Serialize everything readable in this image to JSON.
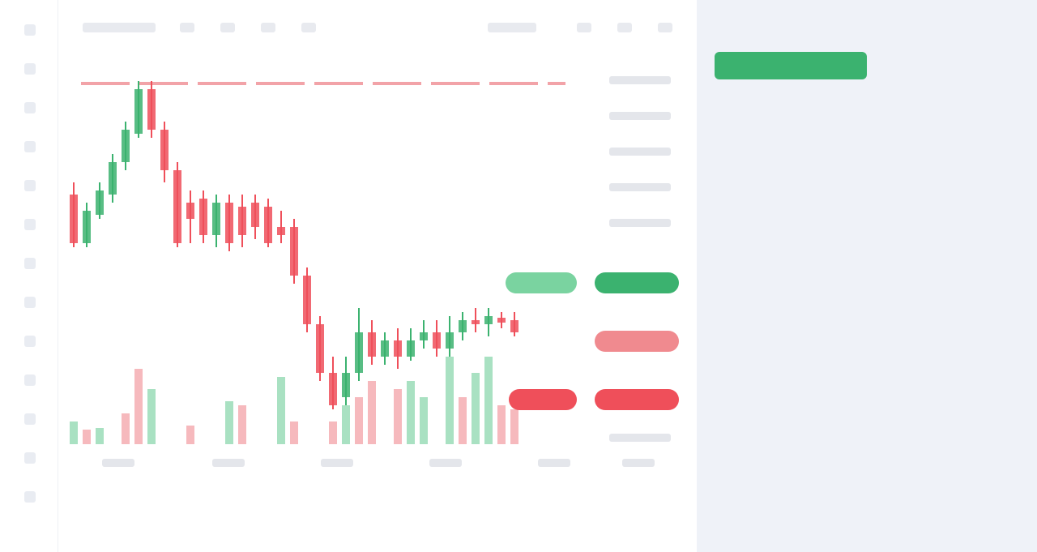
{
  "panel": {
    "title": "",
    "status_badge": "",
    "fields": [
      {
        "label": "",
        "value": ""
      },
      {
        "label": "",
        "value": ""
      },
      {
        "label": "",
        "value": ""
      },
      {
        "label": "",
        "value": ""
      },
      {
        "label": "",
        "value": ""
      },
      {
        "label": "",
        "value": ""
      },
      {
        "label": "",
        "value": ""
      }
    ]
  },
  "chart": {
    "symbol": "",
    "price_tags": [
      "",
      "",
      "",
      "",
      ""
    ]
  },
  "colors": {
    "up": "#3bb26f",
    "down": "#ef4f5a",
    "panel_bg": "#eff2f8"
  }
}
